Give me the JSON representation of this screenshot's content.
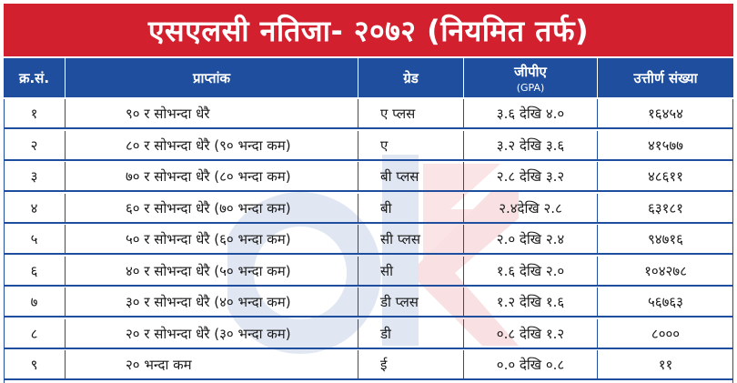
{
  "title": "एसएलसी नतिजा- २०७२ (नियमित तर्फ)",
  "colors": {
    "title_bg": "#d2202f",
    "header_bg": "#1f4e9e",
    "border": "#1f4e9e"
  },
  "headers": {
    "sn": "क्र.सं.",
    "range": "प्राप्तांक",
    "grade": "ग्रेड",
    "gpa": "जीपीए",
    "gpa_sub": "(GPA)",
    "count": "उत्तीर्ण संख्या"
  },
  "rows": [
    {
      "sn": "१",
      "range": "९० र सोभन्दा धेरै",
      "grade": "ए प्लस",
      "gpa": "३.६ देखि ४.०",
      "count": "१६४५४"
    },
    {
      "sn": "२",
      "range": "८० र सोभन्दा धेरै (९० भन्दा कम)",
      "grade": "ए",
      "gpa": "३.२ देखि ३.६",
      "count": "४१५७७"
    },
    {
      "sn": "३",
      "range": "७० र सोभन्दा धेरै (८० भन्दा कम)",
      "grade": "बी प्लस",
      "gpa": "२.८ देखि ३.२",
      "count": "४८६११"
    },
    {
      "sn": "४",
      "range": "६० र सोभन्दा धेरै (७० भन्दा कम)",
      "grade": "बी",
      "gpa": "२.४देखि २.८",
      "count": "६३१८१"
    },
    {
      "sn": "५",
      "range": "५० र सोभन्दा धेरै (६० भन्दा कम)",
      "grade": "सी प्लस",
      "gpa": "२.० देखि २.४",
      "count": "९४७१६"
    },
    {
      "sn": "६",
      "range": "४० र सोभन्दा धेरै (५० भन्दा कम)",
      "grade": "सी",
      "gpa": "१.६ देखि २.०",
      "count": "१०४२७८"
    },
    {
      "sn": "७",
      "range": "३० र सोभन्दा धेरै (४० भन्दा कम)",
      "grade": "डी प्लस",
      "gpa": "१.२ देखि १.६",
      "count": "५६७६३"
    },
    {
      "sn": "८",
      "range": "२० र सोभन्दा धेरै (३० भन्दा कम)",
      "grade": "डी",
      "gpa": "०.८ देखि १.२",
      "count": "८०००"
    },
    {
      "sn": "९",
      "range": "२० भन्दा कम",
      "grade": "ई",
      "gpa": "०.० देखि ०.८",
      "count": "११"
    }
  ]
}
